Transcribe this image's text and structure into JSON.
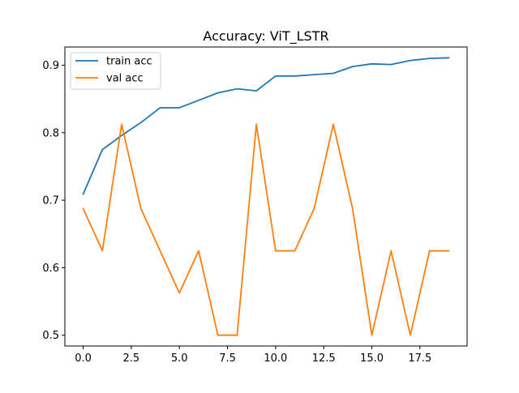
{
  "chart_data": {
    "type": "line",
    "title": "Accuracy: ViT_LSTR",
    "xlabel": "",
    "ylabel": "",
    "x": [
      0,
      1,
      2,
      3,
      4,
      5,
      6,
      7,
      8,
      9,
      10,
      11,
      12,
      13,
      14,
      15,
      16,
      17,
      18,
      19
    ],
    "xlim": [
      -0.95,
      19.95
    ],
    "ylim": [
      0.484,
      0.927
    ],
    "x_ticks": [
      0.0,
      2.5,
      5.0,
      7.5,
      10.0,
      12.5,
      15.0,
      17.5
    ],
    "x_tick_labels": [
      "0.0",
      "2.5",
      "5.0",
      "7.5",
      "10.0",
      "12.5",
      "15.0",
      "17.5"
    ],
    "y_ticks": [
      0.5,
      0.6,
      0.7,
      0.8,
      0.9
    ],
    "y_tick_labels": [
      "0.5",
      "0.6",
      "0.7",
      "0.8",
      "0.9"
    ],
    "grid": false,
    "legend_position": "top-left",
    "series": [
      {
        "name": "train acc",
        "color": "#1f77b4",
        "values": [
          0.709,
          0.775,
          0.796,
          0.815,
          0.837,
          0.837,
          0.848,
          0.859,
          0.865,
          0.862,
          0.884,
          0.884,
          0.886,
          0.888,
          0.898,
          0.902,
          0.901,
          0.907,
          0.91,
          0.911
        ]
      },
      {
        "name": "val acc",
        "color": "#ff7f0e",
        "values": [
          0.6875,
          0.625,
          0.8125,
          0.6875,
          0.625,
          0.5625,
          0.625,
          0.5,
          0.5,
          0.8125,
          0.625,
          0.625,
          0.6875,
          0.8125,
          0.6875,
          0.5,
          0.625,
          0.5,
          0.625,
          0.625
        ]
      }
    ]
  }
}
